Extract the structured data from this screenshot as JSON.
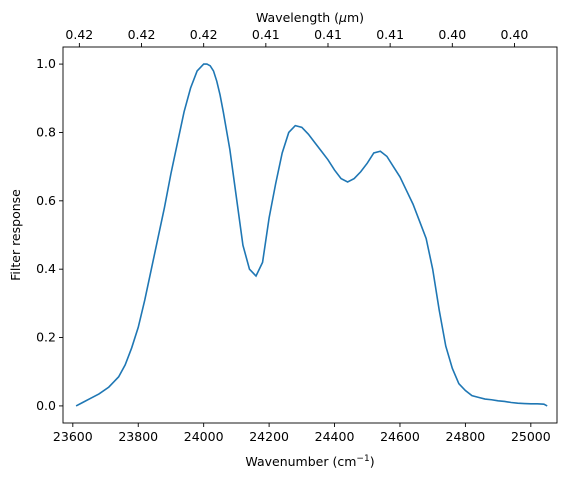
{
  "chart_data": {
    "type": "line",
    "xlabel": "Wavenumber (cm",
    "xlabel_sup": "−1",
    "xlabel_end": ")",
    "ylabel": "Filter response",
    "top_xlabel": "Wavelength (",
    "top_xlabel_mu": "μ",
    "top_xlabel_end": "m)",
    "xlim": [
      23570,
      25080
    ],
    "ylim": [
      -0.05,
      1.05
    ],
    "xticks": [
      23600,
      23800,
      24000,
      24200,
      24400,
      24600,
      24800,
      25000
    ],
    "xtick_labels": [
      "23600",
      "23800",
      "24000",
      "24200",
      "24400",
      "24600",
      "24800",
      "25000"
    ],
    "yticks": [
      0.0,
      0.2,
      0.4,
      0.6,
      0.8,
      1.0
    ],
    "ytick_labels": [
      "0.0",
      "0.2",
      "0.4",
      "0.6",
      "0.8",
      "1.0"
    ],
    "top_ticks": [
      23620,
      23810,
      24000,
      24190,
      24380,
      24570,
      24760,
      24950
    ],
    "top_tick_labels": [
      "0.42",
      "0.42",
      "0.42",
      "0.41",
      "0.41",
      "0.41",
      "0.40",
      "0.40"
    ],
    "line_color": "#1f77b4",
    "series": [
      {
        "x": [
          23610,
          23630,
          23650,
          23680,
          23710,
          23740,
          23760,
          23780,
          23800,
          23820,
          23840,
          23860,
          23880,
          23900,
          23920,
          23940,
          23960,
          23980,
          24000,
          24010,
          24020,
          24030,
          24040,
          24050,
          24060,
          24080,
          24100,
          24120,
          24140,
          24160,
          24180,
          24200,
          24220,
          24240,
          24260,
          24280,
          24300,
          24320,
          24340,
          24360,
          24380,
          24400,
          24420,
          24440,
          24460,
          24480,
          24500,
          24520,
          24540,
          24560,
          24580,
          24600,
          24620,
          24640,
          24660,
          24680,
          24700,
          24720,
          24740,
          24760,
          24780,
          24800,
          24820,
          24840,
          24860,
          24880,
          24900,
          24920,
          24940,
          24960,
          24980,
          25000,
          25020,
          25040,
          25050
        ],
        "y": [
          0.0,
          0.01,
          0.02,
          0.035,
          0.055,
          0.085,
          0.12,
          0.17,
          0.23,
          0.31,
          0.4,
          0.49,
          0.58,
          0.68,
          0.77,
          0.86,
          0.93,
          0.98,
          1.0,
          1.0,
          0.995,
          0.98,
          0.95,
          0.91,
          0.86,
          0.75,
          0.61,
          0.47,
          0.4,
          0.38,
          0.42,
          0.55,
          0.65,
          0.74,
          0.8,
          0.82,
          0.815,
          0.795,
          0.77,
          0.745,
          0.72,
          0.69,
          0.665,
          0.655,
          0.665,
          0.685,
          0.71,
          0.74,
          0.745,
          0.73,
          0.7,
          0.67,
          0.63,
          0.59,
          0.54,
          0.49,
          0.4,
          0.28,
          0.175,
          0.11,
          0.065,
          0.045,
          0.03,
          0.025,
          0.02,
          0.018,
          0.015,
          0.013,
          0.01,
          0.008,
          0.007,
          0.006,
          0.006,
          0.005,
          0.0
        ]
      }
    ]
  }
}
